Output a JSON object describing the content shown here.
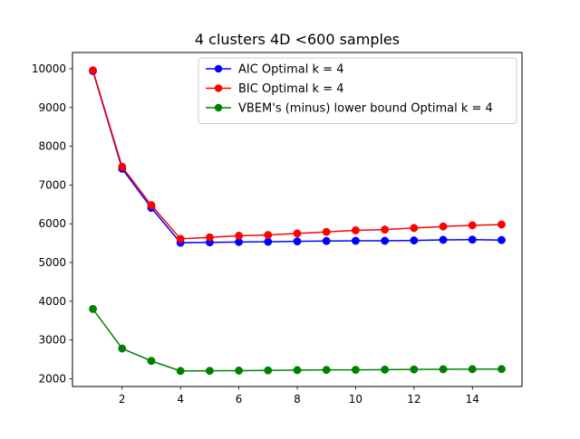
{
  "chart_data": {
    "type": "line",
    "title": "4 clusters 4D  <600 samples",
    "xlabel": "",
    "ylabel": "",
    "xlim": [
      0.3,
      15.7
    ],
    "ylim": [
      1800,
      10420
    ],
    "xticks": [
      2,
      4,
      6,
      8,
      10,
      12,
      14
    ],
    "yticks": [
      2000,
      3000,
      4000,
      5000,
      6000,
      7000,
      8000,
      9000,
      10000
    ],
    "grid": false,
    "legend_position": "top-right",
    "x": [
      1,
      2,
      3,
      4,
      5,
      6,
      7,
      8,
      9,
      10,
      11,
      12,
      13,
      14,
      15
    ],
    "series": [
      {
        "name": "AIC Optimal k = 4",
        "color": "#0000ff",
        "marker": "circle",
        "values": [
          9940,
          7420,
          6410,
          5510,
          5520,
          5530,
          5535,
          5545,
          5555,
          5560,
          5560,
          5570,
          5585,
          5590,
          5580
        ]
      },
      {
        "name": "BIC Optimal k = 4",
        "color": "#ff0000",
        "marker": "circle",
        "values": [
          9960,
          7470,
          6480,
          5610,
          5650,
          5690,
          5710,
          5750,
          5790,
          5830,
          5850,
          5890,
          5930,
          5960,
          5980
        ]
      },
      {
        "name": "VBEM's (minus) lower bound Optimal k = 4",
        "color": "#008000",
        "marker": "circle",
        "values": [
          3800,
          2780,
          2460,
          2200,
          2205,
          2210,
          2215,
          2222,
          2228,
          2230,
          2235,
          2240,
          2245,
          2248,
          2250
        ]
      }
    ]
  }
}
